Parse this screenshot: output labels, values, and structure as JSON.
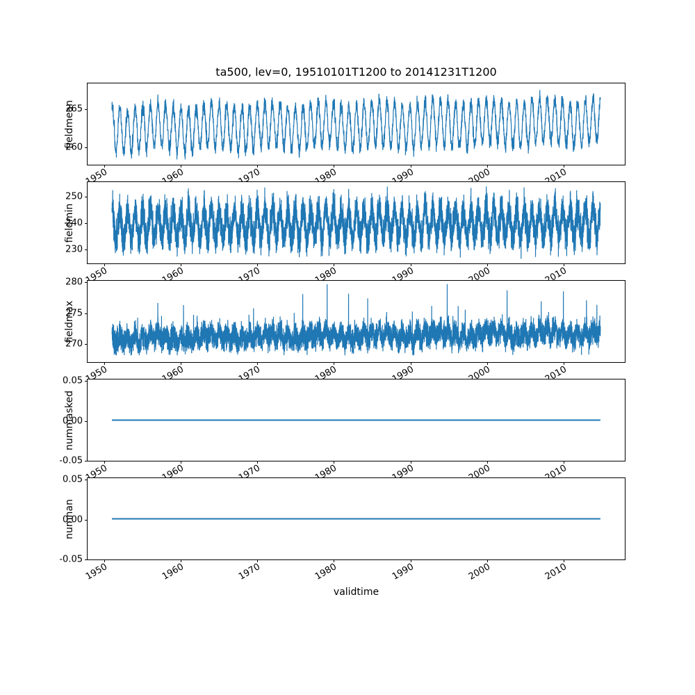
{
  "title": "ta500, lev=0, 19510101T1200 to 20141231T1200",
  "xlabel": "validtime",
  "line_color": "#1f77b4",
  "x_axis": {
    "xlim": [
      1947.8,
      2018.2
    ],
    "ticks": [
      {
        "v": 1950,
        "label": "1950"
      },
      {
        "v": 1960,
        "label": "1960"
      },
      {
        "v": 1970,
        "label": "1970"
      },
      {
        "v": 1980,
        "label": "1980"
      },
      {
        "v": 1990,
        "label": "1990"
      },
      {
        "v": 2000,
        "label": "2000"
      },
      {
        "v": 2010,
        "label": "2010"
      }
    ]
  },
  "chart_data": [
    {
      "type": "line",
      "name": "fieldmean",
      "ylabel": "fieldmean",
      "x_start": 1951.0,
      "x_end": 2015.0,
      "ylim": [
        257.5,
        268.4
      ],
      "yticks": [
        {
          "v": 260,
          "label": "260"
        },
        {
          "v": 265,
          "label": "265"
        }
      ],
      "gen": {
        "kind": "seasonal",
        "mean": 262.8,
        "amplitude": 2.9,
        "noise_sd": 0.5,
        "trend": 0.9,
        "min": 258.2,
        "max": 267.6,
        "step_days": 6,
        "spike_prob": 0,
        "spike_max": 0
      }
    },
    {
      "type": "line",
      "name": "fieldmin",
      "ylabel": "fieldmin",
      "x_start": 1951.0,
      "x_end": 2015.0,
      "ylim": [
        224.3,
        255.6
      ],
      "yticks": [
        {
          "v": 230,
          "label": "230"
        },
        {
          "v": 240,
          "label": "240"
        },
        {
          "v": 250,
          "label": "250"
        }
      ],
      "gen": {
        "kind": "seasonal",
        "mean": 239.5,
        "amplitude": 5.5,
        "noise_sd": 3.1,
        "trend": 0.8,
        "min": 226.0,
        "max": 254.0,
        "step_days": 3,
        "spike_prob": 0,
        "spike_max": 0
      }
    },
    {
      "type": "line",
      "name": "fieldmax",
      "ylabel": "fieldmax",
      "x_start": 1951.0,
      "x_end": 2015.0,
      "ylim": [
        266.9,
        280.2
      ],
      "yticks": [
        {
          "v": 270,
          "label": "270"
        },
        {
          "v": 275,
          "label": "275"
        },
        {
          "v": 280,
          "label": "280"
        }
      ],
      "gen": {
        "kind": "seasonal",
        "mean": 271.2,
        "amplitude": 0.8,
        "noise_sd": 0.95,
        "trend": 0.8,
        "min": 268.0,
        "max": 279.7,
        "step_days": 3,
        "spike_prob": 0.006,
        "spike_max": 6.5
      }
    },
    {
      "type": "line",
      "name": "nummasked",
      "ylabel": "nummasked",
      "x_start": 1951.0,
      "x_end": 2015.0,
      "ylim": [
        -0.052,
        0.052
      ],
      "yticks": [
        {
          "v": -0.05,
          "label": "-0.05"
        },
        {
          "v": 0,
          "label": "0.00"
        },
        {
          "v": 0.05,
          "label": "0.05"
        }
      ],
      "gen": {
        "kind": "constant",
        "value": 0
      }
    },
    {
      "type": "line",
      "name": "numnan",
      "ylabel": "numnan",
      "x_start": 1951.0,
      "x_end": 2015.0,
      "ylim": [
        -0.052,
        0.052
      ],
      "yticks": [
        {
          "v": -0.05,
          "label": "-0.05"
        },
        {
          "v": 0,
          "label": "0.00"
        },
        {
          "v": 0.05,
          "label": "0.05"
        }
      ],
      "gen": {
        "kind": "constant",
        "value": 0
      }
    }
  ]
}
